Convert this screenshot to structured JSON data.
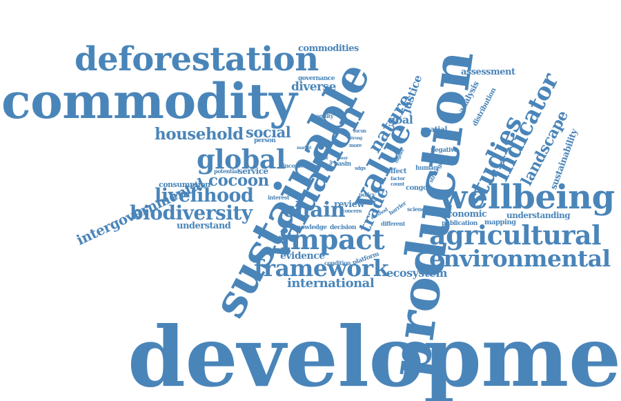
{
  "colors": {
    "word": "#4a85b9",
    "background": "#ffffff"
  },
  "words": [
    {
      "key": "development",
      "text": "development"
    },
    {
      "key": "production",
      "text": "production"
    },
    {
      "key": "sustainable",
      "text": "sustainable"
    },
    {
      "key": "commodity",
      "text": "commodity"
    },
    {
      "key": "deforestation",
      "text": "deforestation"
    },
    {
      "key": "valuation",
      "text": "valuation"
    },
    {
      "key": "value",
      "text": "value"
    },
    {
      "key": "wellbeing",
      "text": "wellbeing"
    },
    {
      "key": "agricultural",
      "text": "agricultural"
    },
    {
      "key": "environmental",
      "text": "environmental"
    },
    {
      "key": "impact",
      "text": "impact"
    },
    {
      "key": "framework",
      "text": "framework"
    },
    {
      "key": "global",
      "text": "global"
    },
    {
      "key": "biodiversity",
      "text": "biodiversity"
    },
    {
      "key": "livelihood",
      "text": "livelihood"
    },
    {
      "key": "household",
      "text": "household"
    },
    {
      "key": "cocoon",
      "text": "cocoon"
    },
    {
      "key": "chain",
      "text": "chain"
    },
    {
      "key": "intergovernmental",
      "text": "intergovernmental"
    },
    {
      "key": "studies",
      "text": "studies"
    },
    {
      "key": "indicator",
      "text": "indicator"
    },
    {
      "key": "landscape",
      "text": "landscape"
    },
    {
      "key": "nature",
      "text": "nature"
    },
    {
      "key": "trade",
      "text": "trade"
    },
    {
      "key": "international",
      "text": "international"
    },
    {
      "key": "ecosystem",
      "text": "ecosystem"
    },
    {
      "key": "social",
      "text": "social"
    },
    {
      "key": "diverse",
      "text": "diverse"
    },
    {
      "key": "commodities",
      "text": "commodities"
    },
    {
      "key": "assessment",
      "text": "assessment"
    },
    {
      "key": "evidence",
      "text": "evidence"
    },
    {
      "key": "review",
      "text": "review"
    },
    {
      "key": "economic",
      "text": "economic"
    },
    {
      "key": "understanding",
      "text": "understanding"
    },
    {
      "key": "understand",
      "text": "understand"
    },
    {
      "key": "goal",
      "text": "goal"
    },
    {
      "key": "justice",
      "text": "justice"
    },
    {
      "key": "sustainability",
      "text": "sustainability"
    },
    {
      "key": "service",
      "text": "service"
    },
    {
      "key": "consumption",
      "text": "consumption"
    },
    {
      "key": "analysis",
      "text": "analysis"
    },
    {
      "key": "distribution",
      "text": "distribution"
    },
    {
      "key": "spatial",
      "text": "spatial"
    },
    {
      "key": "governance",
      "text": "governance"
    },
    {
      "key": "equity",
      "text": "equity"
    },
    {
      "key": "person",
      "text": "person"
    },
    {
      "key": "potential",
      "text": "potential"
    },
    {
      "key": "income",
      "text": "income"
    },
    {
      "key": "interest",
      "text": "interest"
    },
    {
      "key": "knowledge",
      "text": "knowledge"
    },
    {
      "key": "decision",
      "text": "decision"
    },
    {
      "key": "different",
      "text": "different"
    },
    {
      "key": "platform",
      "text": "platform"
    },
    {
      "key": "condition",
      "text": "condition"
    },
    {
      "key": "mapping",
      "text": "mapping"
    },
    {
      "key": "publication",
      "text": "publication"
    },
    {
      "key": "science",
      "text": "science"
    },
    {
      "key": "congo",
      "text": "congo"
    },
    {
      "key": "human",
      "text": "human"
    },
    {
      "key": "negative",
      "text": "negative"
    },
    {
      "key": "strategies",
      "text": "strategies"
    },
    {
      "key": "effect",
      "text": "effect"
    },
    {
      "key": "factor",
      "text": "factor"
    },
    {
      "key": "count",
      "text": "count"
    },
    {
      "key": "policy",
      "text": "policy"
    },
    {
      "key": "barrier",
      "text": "barrier"
    },
    {
      "key": "concern",
      "text": "concern"
    },
    {
      "key": "method",
      "text": "method"
    },
    {
      "key": "basin",
      "text": "basin"
    },
    {
      "key": "sdgs",
      "text": "sdgs"
    },
    {
      "key": "more",
      "text": "more"
    },
    {
      "key": "lower",
      "text": "lower"
    },
    {
      "key": "higher",
      "text": "higher"
    },
    {
      "key": "focus",
      "text": "focus"
    },
    {
      "key": "strong",
      "text": "strong"
    },
    {
      "key": "coffee",
      "text": "coffee"
    },
    {
      "key": "market",
      "text": "market"
    },
    {
      "key": "better",
      "text": "better"
    },
    {
      "key": "local",
      "text": "local"
    }
  ]
}
